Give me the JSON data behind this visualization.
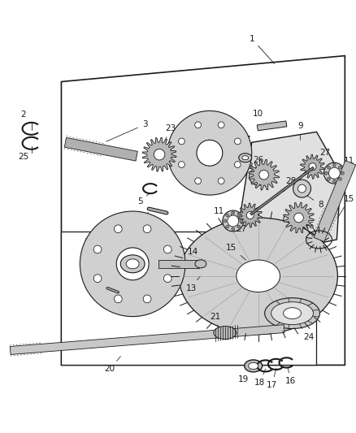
{
  "bg_color": "#ffffff",
  "lc": "#1a1a1a",
  "gray1": "#c8c8c8",
  "gray2": "#a0a0a0",
  "gray3": "#e8e8e8",
  "fig_width": 4.39,
  "fig_height": 5.33,
  "dpi": 100
}
